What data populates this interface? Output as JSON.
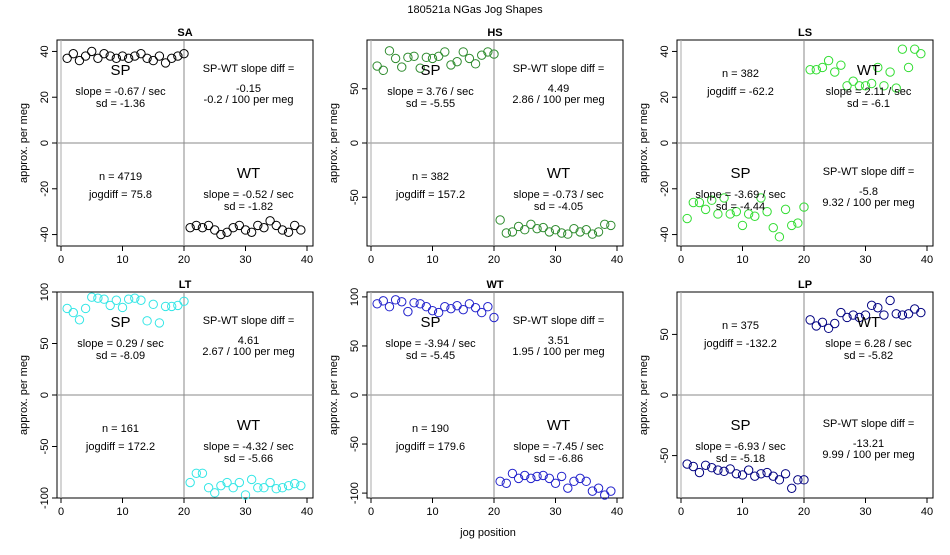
{
  "figure": {
    "title": "180521a   NGas Jog Shapes",
    "xlabel": "jog position",
    "ylabel": "approx. per meg"
  },
  "chart_data": [
    {
      "type": "scatter",
      "title": "SA",
      "color": "#000000",
      "xlim": [
        0,
        40
      ],
      "ylim": [
        -45,
        45
      ],
      "xticks": [
        "0",
        "10",
        "20",
        "30",
        "40"
      ],
      "yticks": [
        -40,
        -20,
        0,
        20,
        40
      ],
      "x": [
        1,
        2,
        3,
        4,
        5,
        6,
        7,
        8,
        9,
        10,
        11,
        12,
        13,
        14,
        15,
        16,
        17,
        18,
        19,
        20,
        21,
        22,
        23,
        24,
        25,
        26,
        27,
        28,
        29,
        30,
        31,
        32,
        33,
        34,
        35,
        36,
        37,
        38,
        39
      ],
      "y": [
        37,
        39,
        36,
        38,
        40,
        37,
        39,
        38,
        37,
        38,
        37,
        38,
        39,
        37,
        36,
        38,
        35,
        37,
        38,
        39,
        -37,
        -36,
        -37,
        -36,
        -38,
        -40,
        -39,
        -37,
        -36,
        -38,
        -39,
        -36,
        -37,
        -34,
        -36,
        -38,
        -39,
        -36,
        -38
      ],
      "labels": {
        "sp": "SP",
        "wt": "WT",
        "sp_slope": "slope = -0.67 / sec",
        "sp_sd": "sd = -1.36",
        "wt_slope": "slope = -0.52 / sec",
        "wt_sd": "sd = -1.82",
        "n": "n = 4719",
        "jogdiff": "jogdiff = 75.8",
        "diff_title": "SP-WT slope diff =",
        "diff_val": "-0.15",
        "diff_meg": "-0.2 / 100 per meg"
      },
      "layout": {
        "sp_quadrant": "top-left",
        "wt_quadrant": "bottom-right",
        "info_quadrant": "bottom-left",
        "diff_quadrant": "top-right"
      }
    },
    {
      "type": "scatter",
      "title": "HS",
      "color": "#2e8b2e",
      "xlim": [
        0,
        40
      ],
      "ylim": [
        -95,
        95
      ],
      "xticks": [
        "0",
        "10",
        "20",
        "30",
        "40"
      ],
      "yticks": [
        -50,
        0,
        50
      ],
      "x": [
        1,
        2,
        3,
        4,
        5,
        6,
        7,
        8,
        9,
        10,
        11,
        12,
        13,
        14,
        15,
        16,
        17,
        18,
        19,
        20,
        21,
        22,
        23,
        24,
        25,
        26,
        27,
        28,
        29,
        30,
        31,
        32,
        33,
        34,
        35,
        36,
        37,
        38,
        39
      ],
      "y": [
        71,
        67,
        85,
        78,
        70,
        79,
        80,
        69,
        79,
        78,
        80,
        84,
        72,
        75,
        84,
        78,
        73,
        81,
        84,
        82,
        -71,
        -83,
        -82,
        -77,
        -80,
        -75,
        -79,
        -78,
        -82,
        -80,
        -83,
        -84,
        -79,
        -82,
        -80,
        -84,
        -82,
        -75,
        -76
      ],
      "labels": {
        "sp": "SP",
        "wt": "WT",
        "sp_slope": "slope = 3.76 / sec",
        "sp_sd": "sd = -5.55",
        "wt_slope": "slope = -0.73 / sec",
        "wt_sd": "sd = -4.05",
        "n": "n = 382",
        "jogdiff": "jogdiff = 157.2",
        "diff_title": "SP-WT slope diff =",
        "diff_val": "4.49",
        "diff_meg": "2.86 / 100 per meg"
      },
      "layout": {
        "sp_quadrant": "top-left",
        "wt_quadrant": "bottom-right",
        "info_quadrant": "bottom-left",
        "diff_quadrant": "top-right"
      }
    },
    {
      "type": "scatter",
      "title": "LS",
      "color": "#33dd33",
      "xlim": [
        0,
        40
      ],
      "ylim": [
        -45,
        45
      ],
      "xticks": [
        "0",
        "10",
        "20",
        "30",
        "40"
      ],
      "yticks": [
        -40,
        -20,
        0,
        20,
        40
      ],
      "x": [
        1,
        2,
        3,
        4,
        5,
        6,
        7,
        8,
        9,
        10,
        11,
        12,
        13,
        14,
        15,
        16,
        17,
        18,
        19,
        20,
        21,
        22,
        23,
        24,
        25,
        26,
        27,
        28,
        29,
        30,
        31,
        32,
        33,
        34,
        35,
        36,
        37,
        38,
        39
      ],
      "y": [
        -33,
        -26,
        -26,
        -29,
        -25,
        -31,
        -24,
        -31,
        -30,
        -36,
        -31,
        -32,
        -24,
        -30,
        -37,
        -41,
        -29,
        -36,
        -35,
        -28,
        32,
        32,
        33,
        36,
        31,
        34,
        25,
        27,
        25,
        25,
        26,
        33,
        25,
        31,
        24,
        41,
        33,
        41,
        39
      ],
      "labels": {
        "sp": "SP",
        "wt": "WT",
        "sp_slope": "slope = -3.69 / sec",
        "sp_sd": "sd = -4.44",
        "wt_slope": "slope = 2.11 / sec",
        "wt_sd": "sd = -6.1",
        "n": "n = 382",
        "jogdiff": "jogdiff = -62.2",
        "diff_title": "SP-WT slope diff =",
        "diff_val": "-5.8",
        "diff_meg": "9.32 / 100 per meg"
      },
      "layout": {
        "sp_quadrant": "bottom-left",
        "wt_quadrant": "top-right",
        "info_quadrant": "top-left",
        "diff_quadrant": "bottom-right"
      }
    },
    {
      "type": "scatter",
      "title": "LT",
      "color": "#33e6e6",
      "xlim": [
        0,
        40
      ],
      "ylim": [
        -100,
        100
      ],
      "xticks": [
        "0",
        "10",
        "20",
        "30",
        "40"
      ],
      "yticks": [
        -100,
        -50,
        0,
        50,
        100
      ],
      "x": [
        1,
        2,
        3,
        4,
        5,
        6,
        7,
        8,
        9,
        10,
        11,
        12,
        13,
        14,
        15,
        16,
        17,
        18,
        19,
        20,
        21,
        22,
        23,
        24,
        25,
        26,
        27,
        28,
        29,
        30,
        31,
        32,
        33,
        34,
        35,
        36,
        37,
        38,
        39
      ],
      "y": [
        84,
        80,
        73,
        84,
        95,
        94,
        93,
        87,
        92,
        85,
        93,
        94,
        92,
        72,
        88,
        70,
        86,
        86,
        87,
        91,
        -85,
        -76,
        -76,
        -90,
        -95,
        -88,
        -85,
        -90,
        -85,
        -97,
        -82,
        -90,
        -90,
        -85,
        -91,
        -90,
        -88,
        -86,
        -88
      ],
      "labels": {
        "sp": "SP",
        "wt": "WT",
        "sp_slope": "slope = 0.29 / sec",
        "sp_sd": "sd = -8.09",
        "wt_slope": "slope = -4.32 / sec",
        "wt_sd": "sd = -5.66",
        "n": "n = 161",
        "jogdiff": "jogdiff = 172.2",
        "diff_title": "SP-WT slope diff =",
        "diff_val": "4.61",
        "diff_meg": "2.67 / 100 per meg"
      },
      "layout": {
        "sp_quadrant": "top-left",
        "wt_quadrant": "bottom-right",
        "info_quadrant": "bottom-left",
        "diff_quadrant": "top-right"
      }
    },
    {
      "type": "scatter",
      "title": "WT",
      "color": "#2222cc",
      "xlim": [
        0,
        40
      ],
      "ylim": [
        -105,
        105
      ],
      "xticks": [
        "0",
        "10",
        "20",
        "30",
        "40"
      ],
      "yticks": [
        -100,
        -50,
        0,
        50,
        100
      ],
      "x": [
        1,
        2,
        3,
        4,
        5,
        6,
        7,
        8,
        9,
        10,
        11,
        12,
        13,
        14,
        15,
        16,
        17,
        18,
        19,
        20,
        21,
        22,
        23,
        24,
        25,
        26,
        27,
        28,
        29,
        30,
        31,
        32,
        33,
        34,
        35,
        36,
        37,
        38,
        39
      ],
      "y": [
        93,
        96,
        90,
        97,
        95,
        85,
        94,
        93,
        90,
        86,
        84,
        90,
        88,
        91,
        87,
        93,
        89,
        84,
        90,
        79,
        -88,
        -90,
        -80,
        -85,
        -82,
        -85,
        -83,
        -82,
        -85,
        -90,
        -83,
        -95,
        -88,
        -85,
        -88,
        -98,
        -95,
        -102,
        -98
      ],
      "labels": {
        "sp": "SP",
        "wt": "WT",
        "sp_slope": "slope = -3.94 / sec",
        "sp_sd": "sd = -5.45",
        "wt_slope": "slope = -7.45 / sec",
        "wt_sd": "sd = -6.86",
        "n": "n = 190",
        "jogdiff": "jogdiff = 179.6",
        "diff_title": "SP-WT slope diff =",
        "diff_val": "3.51",
        "diff_meg": "1.95 / 100 per meg"
      },
      "layout": {
        "sp_quadrant": "top-left",
        "wt_quadrant": "bottom-right",
        "info_quadrant": "bottom-left",
        "diff_quadrant": "top-right"
      }
    },
    {
      "type": "scatter",
      "title": "LP",
      "color": "#000080",
      "xlim": [
        0,
        40
      ],
      "ylim": [
        -85,
        85
      ],
      "xticks": [
        "0",
        "10",
        "20",
        "30",
        "40"
      ],
      "yticks": [
        -50,
        0,
        50
      ],
      "x": [
        1,
        2,
        3,
        4,
        5,
        6,
        7,
        8,
        9,
        10,
        11,
        12,
        13,
        14,
        15,
        16,
        17,
        18,
        19,
        20,
        21,
        22,
        23,
        24,
        25,
        26,
        27,
        28,
        29,
        30,
        31,
        32,
        33,
        34,
        35,
        36,
        37,
        38,
        39
      ],
      "y": [
        -57,
        -59,
        -64,
        -58,
        -60,
        -62,
        -63,
        -61,
        -65,
        -66,
        -62,
        -67,
        -65,
        -64,
        -67,
        -70,
        -65,
        -77,
        -70,
        -70,
        62,
        57,
        60,
        55,
        59,
        68,
        64,
        66,
        64,
        66,
        74,
        72,
        66,
        78,
        67,
        66,
        67,
        71,
        68
      ],
      "labels": {
        "sp": "SP",
        "wt": "WT",
        "sp_slope": "slope = -6.93 / sec",
        "sp_sd": "sd = -5.18",
        "wt_slope": "slope = 6.28 / sec",
        "wt_sd": "sd = -5.82",
        "n": "n = 375",
        "jogdiff": "jogdiff = -132.2",
        "diff_title": "SP-WT slope diff =",
        "diff_val": "-13.21",
        "diff_meg": "9.99 / 100 per meg"
      },
      "layout": {
        "sp_quadrant": "bottom-left",
        "wt_quadrant": "top-right",
        "info_quadrant": "top-left",
        "diff_quadrant": "bottom-right"
      }
    }
  ]
}
